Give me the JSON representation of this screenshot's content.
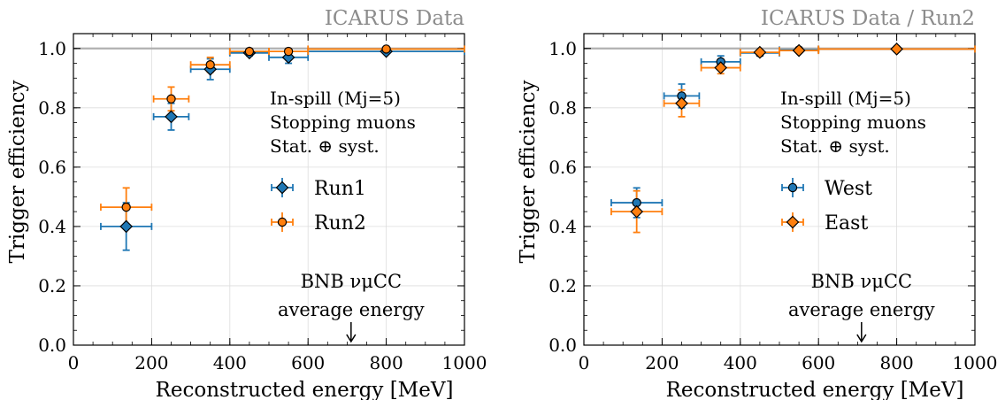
{
  "chart_data": [
    {
      "type": "scatter",
      "title": "ICARUS Data",
      "xlabel": "Reconstructed energy [MeV]",
      "ylabel": "Trigger efficiency",
      "xlim": [
        0,
        1000
      ],
      "ylim": [
        0,
        1.05
      ],
      "x_ticks": [
        "0",
        "200",
        "400",
        "600",
        "800",
        "1000"
      ],
      "y_ticks": [
        "0.0",
        "0.2",
        "0.4",
        "0.6",
        "0.8",
        "1.0"
      ],
      "reference_line": 1.0,
      "annotation_lines": [
        "In-spill (Mj=5)",
        "Stopping muons",
        "Stat. ⊕ syst."
      ],
      "arrow_label": [
        "BNB νμCC",
        "average energy"
      ],
      "arrow_x": 710,
      "legend_position": "center-right",
      "series": [
        {
          "name": "Run1",
          "color": "#1f77b4",
          "marker": "diamond",
          "points": [
            {
              "x": 135,
              "xerr": 65,
              "y": 0.4,
              "yerr": 0.08
            },
            {
              "x": 250,
              "xerr": 45,
              "y": 0.77,
              "yerr": 0.045
            },
            {
              "x": 350,
              "xerr": 50,
              "y": 0.93,
              "yerr": 0.035
            },
            {
              "x": 450,
              "xerr": 50,
              "y": 0.985,
              "yerr": 0.01
            },
            {
              "x": 550,
              "xerr": 50,
              "y": 0.97,
              "yerr": 0.02
            },
            {
              "x": 800,
              "xerr": 200,
              "y": 0.99,
              "yerr": 0.005
            }
          ]
        },
        {
          "name": "Run2",
          "color": "#ff7f0e",
          "marker": "circle",
          "points": [
            {
              "x": 135,
              "xerr": 65,
              "y": 0.465,
              "yerr": 0.065
            },
            {
              "x": 250,
              "xerr": 45,
              "y": 0.83,
              "yerr": 0.04
            },
            {
              "x": 350,
              "xerr": 50,
              "y": 0.945,
              "yerr": 0.025
            },
            {
              "x": 450,
              "xerr": 50,
              "y": 0.99,
              "yerr": 0.008
            },
            {
              "x": 550,
              "xerr": 50,
              "y": 0.99,
              "yerr": 0.008
            },
            {
              "x": 800,
              "xerr": 200,
              "y": 0.998,
              "yerr": 0.003
            }
          ]
        }
      ]
    },
    {
      "type": "scatter",
      "title": "ICARUS Data / Run2",
      "xlabel": "Reconstructed energy [MeV]",
      "ylabel": "Trigger efficiency",
      "xlim": [
        0,
        1000
      ],
      "ylim": [
        0,
        1.05
      ],
      "x_ticks": [
        "0",
        "200",
        "400",
        "600",
        "800",
        "1000"
      ],
      "y_ticks": [
        "0.0",
        "0.2",
        "0.4",
        "0.6",
        "0.8",
        "1.0"
      ],
      "reference_line": 1.0,
      "annotation_lines": [
        "In-spill (Mj=5)",
        "Stopping muons",
        "Stat. ⊕ syst."
      ],
      "arrow_label": [
        "BNB νμCC",
        "average energy"
      ],
      "arrow_x": 710,
      "legend_position": "center-right",
      "series": [
        {
          "name": "West",
          "color": "#1f77b4",
          "marker": "circle",
          "points": [
            {
              "x": 135,
              "xerr": 65,
              "y": 0.48,
              "yerr": 0.05
            },
            {
              "x": 250,
              "xerr": 45,
              "y": 0.84,
              "yerr": 0.04
            },
            {
              "x": 350,
              "xerr": 50,
              "y": 0.955,
              "yerr": 0.02
            },
            {
              "x": 450,
              "xerr": 50,
              "y": 0.985,
              "yerr": 0.01
            },
            {
              "x": 550,
              "xerr": 50,
              "y": 0.995,
              "yerr": 0.005
            },
            {
              "x": 800,
              "xerr": 200,
              "y": 0.998,
              "yerr": 0.003
            }
          ]
        },
        {
          "name": "East",
          "color": "#ff7f0e",
          "marker": "diamond",
          "points": [
            {
              "x": 135,
              "xerr": 65,
              "y": 0.45,
              "yerr": 0.07
            },
            {
              "x": 250,
              "xerr": 45,
              "y": 0.815,
              "yerr": 0.045
            },
            {
              "x": 350,
              "xerr": 50,
              "y": 0.935,
              "yerr": 0.02
            },
            {
              "x": 450,
              "xerr": 50,
              "y": 0.987,
              "yerr": 0.008
            },
            {
              "x": 550,
              "xerr": 50,
              "y": 0.993,
              "yerr": 0.005
            },
            {
              "x": 800,
              "xerr": 200,
              "y": 0.998,
              "yerr": 0.003
            }
          ]
        }
      ]
    }
  ]
}
